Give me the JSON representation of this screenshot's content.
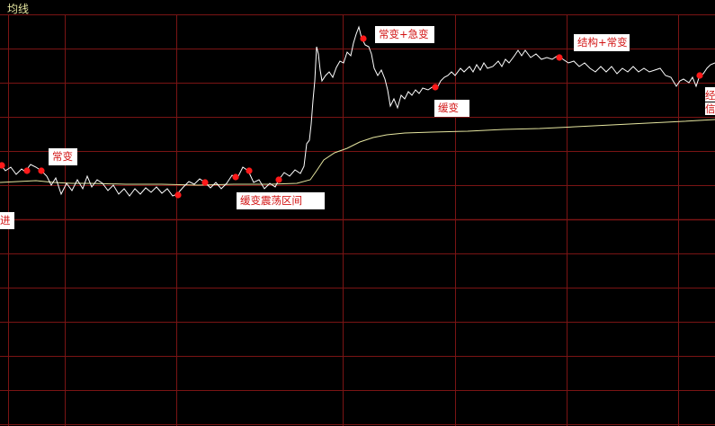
{
  "chart_title": "均线",
  "chart_data": {
    "type": "line",
    "title": "均线",
    "grid": true,
    "colors": {
      "background": "#000000",
      "grid_line": "#7a1414",
      "price_line": "#ffffff",
      "average_line": "#e6e6a0",
      "marker": "#ff1a1a",
      "title_text": "#e6e6a0",
      "annotation_text": "#d21414",
      "annotation_bg": "#ffffff"
    },
    "annotations": [
      {
        "id": "jin",
        "text": "进"
      },
      {
        "id": "changbian1",
        "text": "常变"
      },
      {
        "id": "huanbian-zhendang",
        "text": "缓变震荡区间"
      },
      {
        "id": "changbian-jibian",
        "text": "常变+急变"
      },
      {
        "id": "huanbian",
        "text": "缓变"
      },
      {
        "id": "jiegou-changbian",
        "text": "结构+常变"
      },
      {
        "id": "edge-1",
        "text": "经"
      },
      {
        "id": "edge-2",
        "text": "信"
      }
    ]
  }
}
